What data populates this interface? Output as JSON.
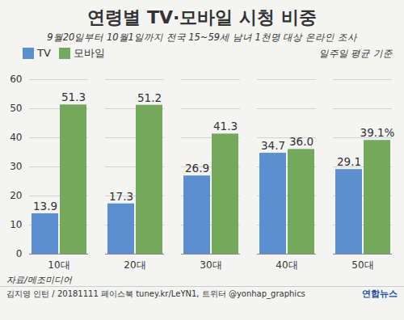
{
  "chart_data": {
    "type": "bar",
    "title": "연령별 TV·모바일 시청 비중",
    "subtitle": "9월20일부터 10월1일까지 전국 15~59세 남녀 1천명 대상 온라인 조사",
    "note": "일주일 평균 기준",
    "source": "자료/메조미디어",
    "credit": "김지영 인턴 / 20181111 페이스북 tuney.kr/LeYN1, 트위터 @yonhap_graphics",
    "logo": "연합뉴스",
    "categories": [
      "10대",
      "20대",
      "30대",
      "40대",
      "50대"
    ],
    "series": [
      {
        "name": "TV",
        "color": "#5b8fd0",
        "values": [
          13.9,
          17.3,
          26.9,
          34.7,
          29.1
        ],
        "value_labels": [
          "13.9",
          "17.3",
          "26.9",
          "34.7",
          "29.1"
        ]
      },
      {
        "name": "모바일",
        "color": "#74a85a",
        "values": [
          51.3,
          51.2,
          41.3,
          36,
          39.1
        ],
        "value_labels": [
          "51.3",
          "51.2",
          "41.3",
          "36.0",
          "39.1%"
        ]
      }
    ],
    "ylim": [
      0,
      60
    ],
    "yticks": [
      0,
      10,
      20,
      30,
      40,
      50,
      60
    ],
    "grid": true,
    "legend": "top-left",
    "data_labels": true
  }
}
